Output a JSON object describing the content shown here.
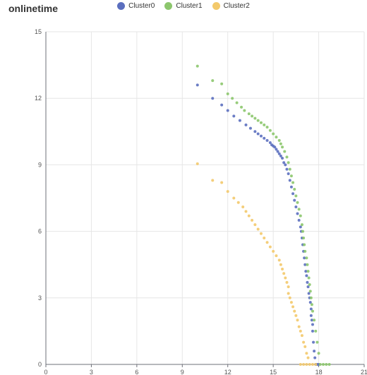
{
  "title": "onlinetime",
  "colors": {
    "cluster0": "#5b6fbf",
    "cluster1": "#8cc66d",
    "cluster2": "#f3c96b",
    "grid": "#e6e6e6",
    "axis": "#6e7079"
  },
  "chart_data": {
    "type": "scatter",
    "title": "onlinetime",
    "xlabel": "",
    "ylabel": "",
    "xlim": [
      0,
      21
    ],
    "ylim": [
      0,
      15
    ],
    "x_ticks": [
      0,
      3,
      6,
      9,
      12,
      15,
      18,
      21
    ],
    "y_ticks": [
      0,
      3,
      6,
      9,
      12,
      15
    ],
    "grid": true,
    "legend_position": "top",
    "series": [
      {
        "name": "Cluster0",
        "color": "#5b6fbf",
        "points": [
          [
            10.0,
            12.6
          ],
          [
            11.0,
            12.0
          ],
          [
            11.6,
            11.7
          ],
          [
            12.0,
            11.45
          ],
          [
            12.4,
            11.2
          ],
          [
            12.8,
            11.0
          ],
          [
            13.2,
            10.8
          ],
          [
            13.5,
            10.65
          ],
          [
            13.8,
            10.5
          ],
          [
            14.0,
            10.4
          ],
          [
            14.2,
            10.3
          ],
          [
            14.4,
            10.2
          ],
          [
            14.6,
            10.1
          ],
          [
            14.8,
            10.0
          ],
          [
            14.9,
            9.9
          ],
          [
            15.0,
            9.85
          ],
          [
            15.1,
            9.8
          ],
          [
            15.2,
            9.7
          ],
          [
            15.3,
            9.6
          ],
          [
            15.4,
            9.5
          ],
          [
            15.5,
            9.4
          ],
          [
            15.6,
            9.3
          ],
          [
            15.7,
            9.1
          ],
          [
            15.8,
            9.0
          ],
          [
            15.9,
            8.8
          ],
          [
            16.0,
            8.6
          ],
          [
            16.1,
            8.3
          ],
          [
            16.2,
            8.0
          ],
          [
            16.3,
            7.7
          ],
          [
            16.4,
            7.4
          ],
          [
            16.5,
            7.1
          ],
          [
            16.6,
            6.8
          ],
          [
            16.7,
            6.5
          ],
          [
            16.8,
            6.2
          ],
          [
            16.85,
            6.0
          ],
          [
            16.9,
            5.7
          ],
          [
            16.95,
            5.4
          ],
          [
            17.0,
            5.1
          ],
          [
            17.05,
            4.8
          ],
          [
            17.1,
            4.5
          ],
          [
            17.15,
            4.2
          ],
          [
            17.2,
            4.0
          ],
          [
            17.25,
            3.7
          ],
          [
            17.3,
            3.5
          ],
          [
            17.35,
            3.2
          ],
          [
            17.4,
            3.0
          ],
          [
            17.45,
            2.8
          ],
          [
            17.5,
            2.5
          ],
          [
            17.5,
            2.2
          ],
          [
            17.55,
            2.0
          ],
          [
            17.6,
            1.8
          ],
          [
            17.6,
            1.5
          ],
          [
            17.65,
            1.0
          ],
          [
            17.7,
            0.6
          ],
          [
            17.75,
            0.3
          ],
          [
            17.8,
            0.0
          ],
          [
            17.9,
            0.0
          ],
          [
            18.0,
            0.0
          ]
        ]
      },
      {
        "name": "Cluster1",
        "color": "#8cc66d",
        "points": [
          [
            10.0,
            13.45
          ],
          [
            11.0,
            12.8
          ],
          [
            11.6,
            12.65
          ],
          [
            12.0,
            12.2
          ],
          [
            12.3,
            12.0
          ],
          [
            12.6,
            11.8
          ],
          [
            12.9,
            11.6
          ],
          [
            13.1,
            11.45
          ],
          [
            13.4,
            11.3
          ],
          [
            13.6,
            11.2
          ],
          [
            13.8,
            11.1
          ],
          [
            14.0,
            11.0
          ],
          [
            14.2,
            10.9
          ],
          [
            14.4,
            10.8
          ],
          [
            14.6,
            10.7
          ],
          [
            14.8,
            10.55
          ],
          [
            15.0,
            10.4
          ],
          [
            15.2,
            10.25
          ],
          [
            15.4,
            10.1
          ],
          [
            15.5,
            9.95
          ],
          [
            15.6,
            9.8
          ],
          [
            15.75,
            9.6
          ],
          [
            15.9,
            9.35
          ],
          [
            16.0,
            9.1
          ],
          [
            16.1,
            8.8
          ],
          [
            16.2,
            8.5
          ],
          [
            16.3,
            8.2
          ],
          [
            16.4,
            7.9
          ],
          [
            16.5,
            7.6
          ],
          [
            16.6,
            7.3
          ],
          [
            16.7,
            7.0
          ],
          [
            16.8,
            6.7
          ],
          [
            16.9,
            6.3
          ],
          [
            16.95,
            6.0
          ],
          [
            17.0,
            5.7
          ],
          [
            17.05,
            5.4
          ],
          [
            17.1,
            5.1
          ],
          [
            17.2,
            4.8
          ],
          [
            17.25,
            4.5
          ],
          [
            17.3,
            4.2
          ],
          [
            17.35,
            3.9
          ],
          [
            17.4,
            3.6
          ],
          [
            17.45,
            3.3
          ],
          [
            17.5,
            3.0
          ],
          [
            17.55,
            2.7
          ],
          [
            17.6,
            2.4
          ],
          [
            17.7,
            2.0
          ],
          [
            17.8,
            1.5
          ],
          [
            17.9,
            1.0
          ],
          [
            18.0,
            0.5
          ],
          [
            18.1,
            0.0
          ],
          [
            18.3,
            0.0
          ],
          [
            18.5,
            0.0
          ],
          [
            18.7,
            0.0
          ]
        ]
      },
      {
        "name": "Cluster2",
        "color": "#f3c96b",
        "points": [
          [
            10.0,
            9.05
          ],
          [
            11.0,
            8.3
          ],
          [
            11.6,
            8.2
          ],
          [
            12.0,
            7.8
          ],
          [
            12.4,
            7.5
          ],
          [
            12.7,
            7.3
          ],
          [
            13.0,
            7.1
          ],
          [
            13.2,
            6.9
          ],
          [
            13.4,
            6.7
          ],
          [
            13.6,
            6.5
          ],
          [
            13.8,
            6.3
          ],
          [
            14.0,
            6.1
          ],
          [
            14.2,
            5.9
          ],
          [
            14.4,
            5.7
          ],
          [
            14.6,
            5.5
          ],
          [
            14.8,
            5.3
          ],
          [
            15.0,
            5.1
          ],
          [
            15.2,
            4.9
          ],
          [
            15.4,
            4.7
          ],
          [
            15.5,
            4.5
          ],
          [
            15.6,
            4.3
          ],
          [
            15.7,
            4.1
          ],
          [
            15.8,
            3.9
          ],
          [
            15.9,
            3.7
          ],
          [
            16.0,
            3.5
          ],
          [
            16.0,
            3.2
          ],
          [
            16.1,
            3.0
          ],
          [
            16.2,
            2.8
          ],
          [
            16.3,
            2.6
          ],
          [
            16.4,
            2.4
          ],
          [
            16.5,
            2.2
          ],
          [
            16.6,
            2.0
          ],
          [
            16.7,
            1.7
          ],
          [
            16.8,
            1.5
          ],
          [
            16.9,
            1.3
          ],
          [
            17.0,
            1.0
          ],
          [
            17.1,
            0.8
          ],
          [
            17.2,
            0.5
          ],
          [
            17.3,
            0.3
          ],
          [
            16.8,
            0.0
          ],
          [
            17.0,
            0.0
          ],
          [
            17.2,
            0.0
          ],
          [
            17.4,
            0.0
          ],
          [
            17.6,
            0.0
          ],
          [
            17.8,
            0.0
          ]
        ]
      }
    ]
  }
}
